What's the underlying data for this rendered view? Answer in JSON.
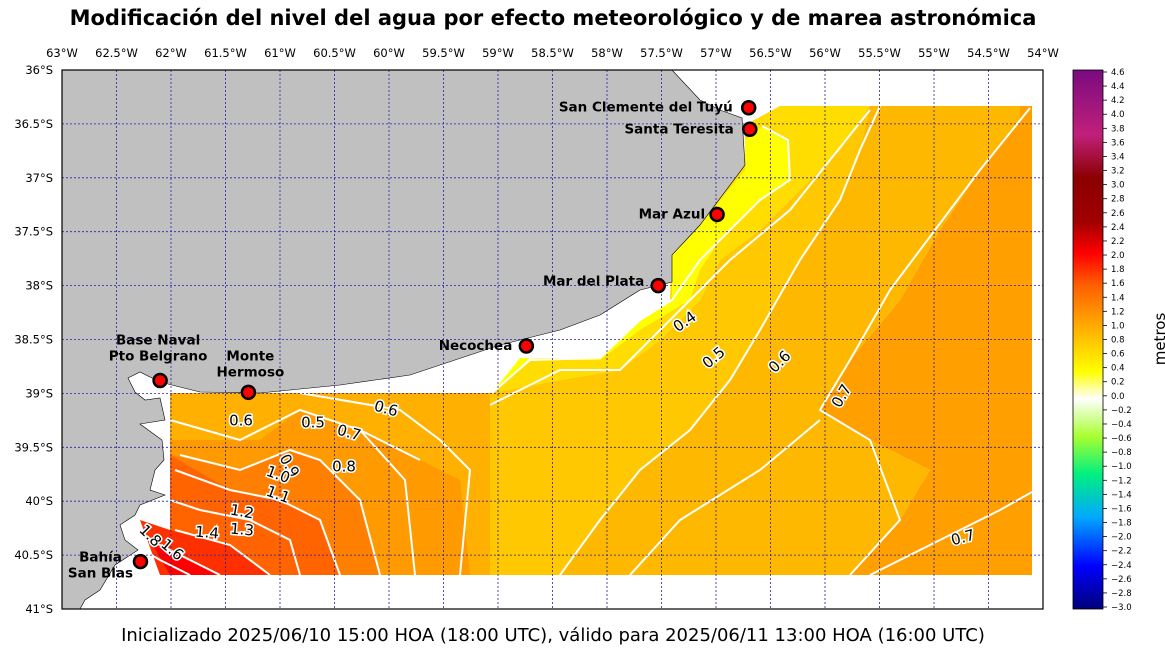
{
  "title": "Modificación del nivel del agua por efecto meteorológico y de marea astronómica",
  "footer": "Inicializado 2025/06/10 15:00 HOA (18:00 UTC), válido para 2025/06/11 13:00 HOA (16:00 UTC)",
  "colorbar": {
    "label": "metros",
    "ticks": [
      "4.6",
      "4.4",
      "4.2",
      "4.0",
      "3.8",
      "3.6",
      "3.4",
      "3.2",
      "3.0",
      "2.8",
      "2.6",
      "2.4",
      "2.2",
      "2.0",
      "1.8",
      "1.6",
      "1.4",
      "1.2",
      "1.0",
      "0.8",
      "0.6",
      "0.4",
      "0.2",
      "0.0",
      "−0.2",
      "−0.4",
      "−0.6",
      "−0.8",
      "−1.0",
      "−1.2",
      "−1.4",
      "−1.6",
      "−1.8",
      "−2.0",
      "−2.2",
      "−2.4",
      "−2.6",
      "−2.8",
      "−3.0"
    ]
  },
  "axes": {
    "lon_labels": [
      "63°W",
      "62.5°W",
      "62°W",
      "61.5°W",
      "61°W",
      "60.5°W",
      "60°W",
      "59.5°W",
      "59°W",
      "58.5°W",
      "58°W",
      "57.5°W",
      "57°W",
      "56.5°W",
      "56°W",
      "55.5°W",
      "55°W",
      "54.5°W",
      "54°W"
    ],
    "lat_labels": [
      "36°S",
      "36.5°S",
      "37°S",
      "37.5°S",
      "38°S",
      "38.5°S",
      "39°S",
      "39.5°S",
      "40°S",
      "40.5°S",
      "41°S"
    ]
  },
  "stations": [
    {
      "name": [
        "San Clemente del Tuyú"
      ],
      "lon": -56.7,
      "lat": -36.35
    },
    {
      "name": [
        "Santa Teresita"
      ],
      "lon": -56.69,
      "lat": -36.55
    },
    {
      "name": [
        "Mar Azul"
      ],
      "lon": -56.99,
      "lat": -37.34
    },
    {
      "name": [
        "Mar del Plata"
      ],
      "lon": -57.53,
      "lat": -38.0
    },
    {
      "name": [
        "Necochea"
      ],
      "lon": -58.74,
      "lat": -38.56
    },
    {
      "name": [
        "Base Naval",
        "Pto Belgrano"
      ],
      "lon": -62.1,
      "lat": -38.88
    },
    {
      "name": [
        "Monte",
        "Hermoso"
      ],
      "lon": -61.29,
      "lat": -38.99
    },
    {
      "name": [
        "Bahía",
        "San Blas"
      ],
      "lon": -62.28,
      "lat": -40.56
    }
  ],
  "contour_labels": [
    "0.4",
    "0.5",
    "0.6",
    "0.7",
    "0.6",
    "0.5",
    "0.6",
    "0.7",
    "0.8",
    "0.9",
    "1.0",
    "1.1",
    "1.2",
    "1.3",
    "1.4",
    "1.6",
    "1.8",
    "0.7"
  ]
}
